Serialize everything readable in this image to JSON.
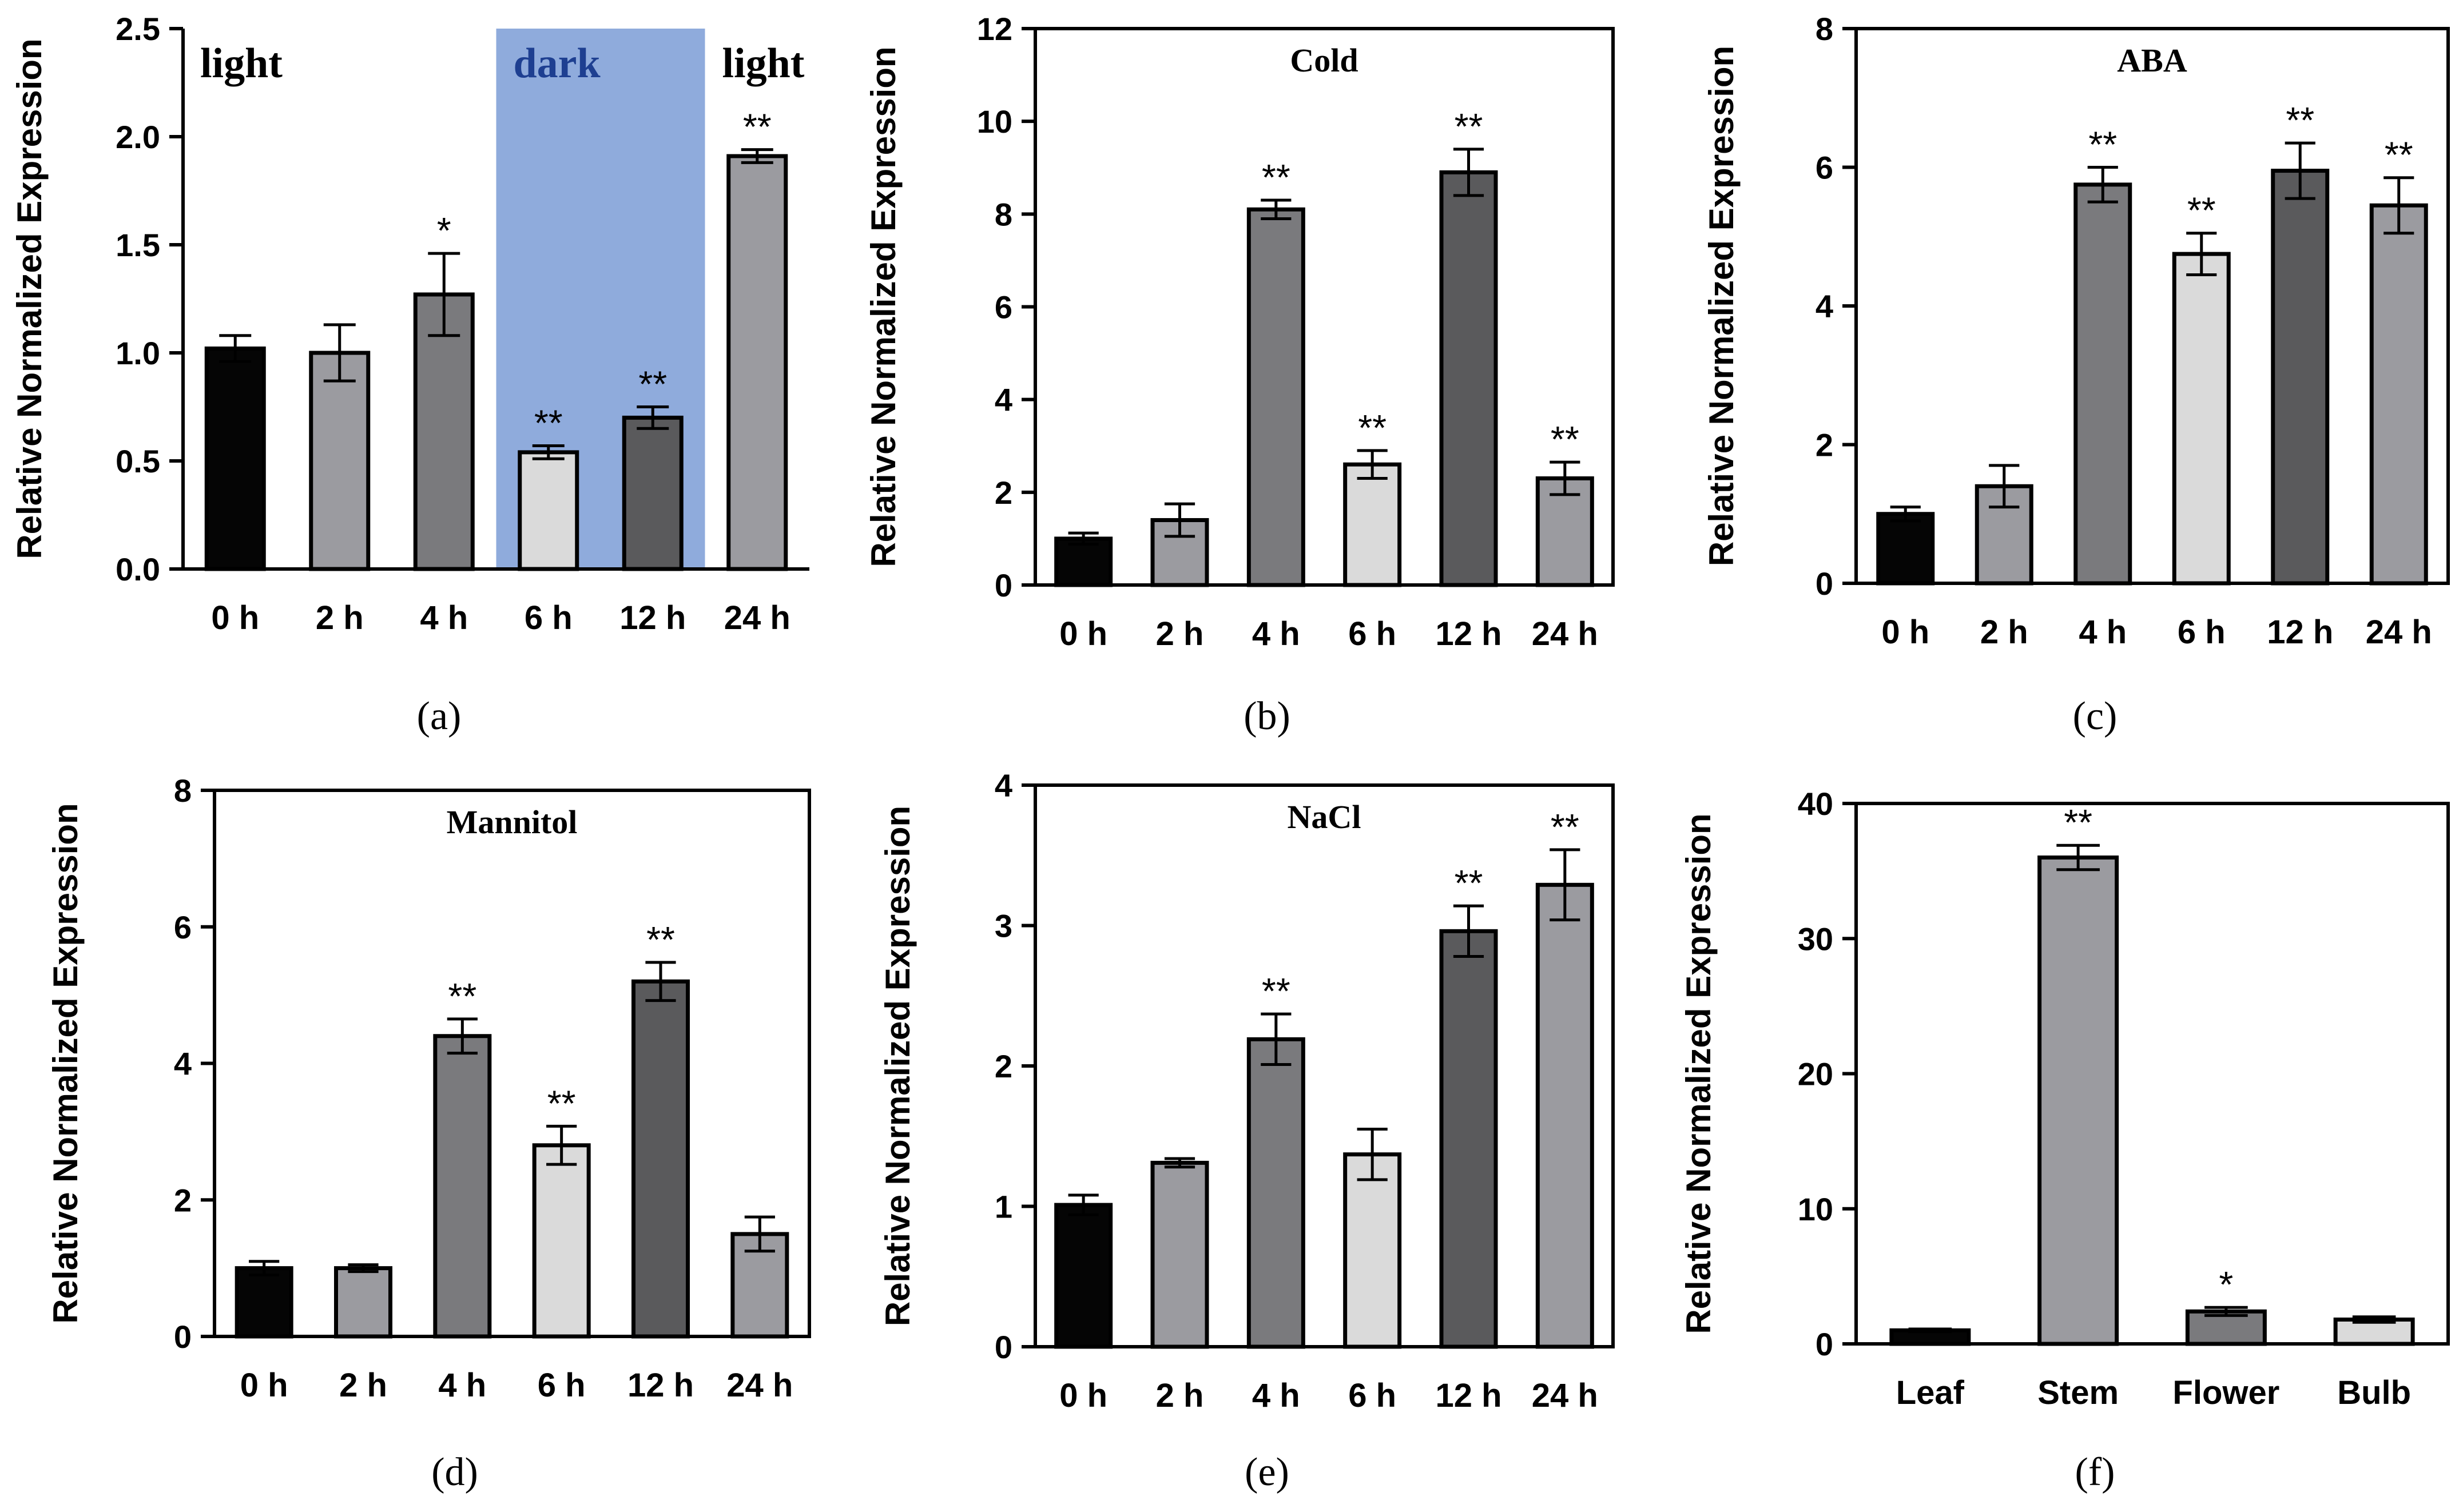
{
  "colors": {
    "black": "#050505",
    "mid_gray": "#9b9ba0",
    "dark_gray": "#7a7a7d",
    "light_gray": "#dadada",
    "charcoal": "#5a5a5c",
    "dark_shade": "#8fabdc",
    "dark_text": "#1e3f91"
  },
  "ylabel": "Relative Normalized Expression",
  "chart_data": [
    {
      "id": "a",
      "panel_label": "(a)",
      "type": "bar",
      "title": "",
      "ylabel": "Relative Normalized Expression",
      "categories": [
        "0 h",
        "2 h",
        "4 h",
        "6 h",
        "12 h",
        "24 h"
      ],
      "values": [
        1.02,
        1.0,
        1.27,
        0.54,
        0.7,
        1.91
      ],
      "errors": [
        0.06,
        0.13,
        0.19,
        0.03,
        0.05,
        0.03
      ],
      "significance": [
        "",
        "",
        "*",
        "**",
        "**",
        "**"
      ],
      "bar_colors": [
        "black",
        "mid_gray",
        "dark_gray",
        "light_gray",
        "charcoal",
        "mid_gray"
      ],
      "ylim": [
        0,
        2.5
      ],
      "yticks": [
        "0.0",
        "0.5",
        "1.0",
        "1.5",
        "2.0",
        "2.5"
      ],
      "frame": false,
      "periods": [
        {
          "label": "light",
          "shaded": false
        },
        {
          "label": "dark",
          "shaded": true
        },
        {
          "label": "light",
          "shaded": false
        }
      ]
    },
    {
      "id": "b",
      "panel_label": "(b)",
      "type": "bar",
      "title": "Cold",
      "ylabel": "Relative Normalized Expression",
      "categories": [
        "0 h",
        "2 h",
        "4 h",
        "6 h",
        "12 h",
        "24 h"
      ],
      "values": [
        1.0,
        1.4,
        8.1,
        2.6,
        8.9,
        2.3
      ],
      "errors": [
        0.12,
        0.35,
        0.2,
        0.3,
        0.5,
        0.35
      ],
      "significance": [
        "",
        "",
        "**",
        "**",
        "**",
        "**"
      ],
      "bar_colors": [
        "black",
        "mid_gray",
        "dark_gray",
        "light_gray",
        "charcoal",
        "mid_gray"
      ],
      "ylim": [
        0,
        12
      ],
      "yticks": [
        "0",
        "2",
        "4",
        "6",
        "8",
        "10",
        "12"
      ],
      "frame": true
    },
    {
      "id": "c",
      "panel_label": "(c)",
      "type": "bar",
      "title": "ABA",
      "ylabel": "Relative Normalized Expression",
      "categories": [
        "0 h",
        "2 h",
        "4 h",
        "6 h",
        "12 h",
        "24 h"
      ],
      "values": [
        1.0,
        1.4,
        5.75,
        4.75,
        5.95,
        5.45
      ],
      "errors": [
        0.1,
        0.3,
        0.25,
        0.3,
        0.4,
        0.4
      ],
      "significance": [
        "",
        "",
        "**",
        "**",
        "**",
        "**"
      ],
      "bar_colors": [
        "black",
        "mid_gray",
        "dark_gray",
        "light_gray",
        "charcoal",
        "mid_gray"
      ],
      "ylim": [
        0,
        8
      ],
      "yticks": [
        "0",
        "2",
        "4",
        "6",
        "8"
      ],
      "frame": true
    },
    {
      "id": "d",
      "panel_label": "(d)",
      "type": "bar",
      "title": "Mannitol",
      "ylabel": "Relative Normalized Expression",
      "categories": [
        "0 h",
        "2 h",
        "4 h",
        "6 h",
        "12 h",
        "24 h"
      ],
      "values": [
        1.0,
        1.0,
        4.4,
        2.8,
        5.2,
        1.5
      ],
      "errors": [
        0.1,
        0.05,
        0.25,
        0.28,
        0.28,
        0.25
      ],
      "significance": [
        "",
        "",
        "**",
        "**",
        "**",
        ""
      ],
      "bar_colors": [
        "black",
        "mid_gray",
        "dark_gray",
        "light_gray",
        "charcoal",
        "mid_gray"
      ],
      "ylim": [
        0,
        8
      ],
      "yticks": [
        "0",
        "2",
        "4",
        "6",
        "8"
      ],
      "frame": true
    },
    {
      "id": "e",
      "panel_label": "(e)",
      "type": "bar",
      "title": "NaCl",
      "ylabel": "Relative Normalized Expression",
      "categories": [
        "0 h",
        "2 h",
        "4 h",
        "6 h",
        "12 h",
        "24 h"
      ],
      "values": [
        1.01,
        1.31,
        2.19,
        1.37,
        2.96,
        3.29
      ],
      "errors": [
        0.07,
        0.03,
        0.18,
        0.18,
        0.18,
        0.25
      ],
      "significance": [
        "",
        "",
        "**",
        "",
        "**",
        "**"
      ],
      "bar_colors": [
        "black",
        "mid_gray",
        "dark_gray",
        "light_gray",
        "charcoal",
        "mid_gray"
      ],
      "ylim": [
        0,
        4
      ],
      "yticks": [
        "0",
        "1",
        "2",
        "3",
        "4"
      ],
      "frame": true
    },
    {
      "id": "f",
      "panel_label": "(f)",
      "type": "bar",
      "title": "",
      "ylabel": "Relative Normalized Expression",
      "categories": [
        "Leaf",
        "Stem",
        "Flower",
        "Bulb"
      ],
      "values": [
        1.0,
        36.0,
        2.4,
        1.8
      ],
      "errors": [
        0.1,
        0.9,
        0.3,
        0.2
      ],
      "significance": [
        "",
        "**",
        "*",
        ""
      ],
      "bar_colors": [
        "black",
        "mid_gray",
        "dark_gray",
        "light_gray"
      ],
      "ylim": [
        0,
        40
      ],
      "yticks": [
        "0",
        "10",
        "20",
        "30",
        "40"
      ],
      "frame": true
    }
  ]
}
